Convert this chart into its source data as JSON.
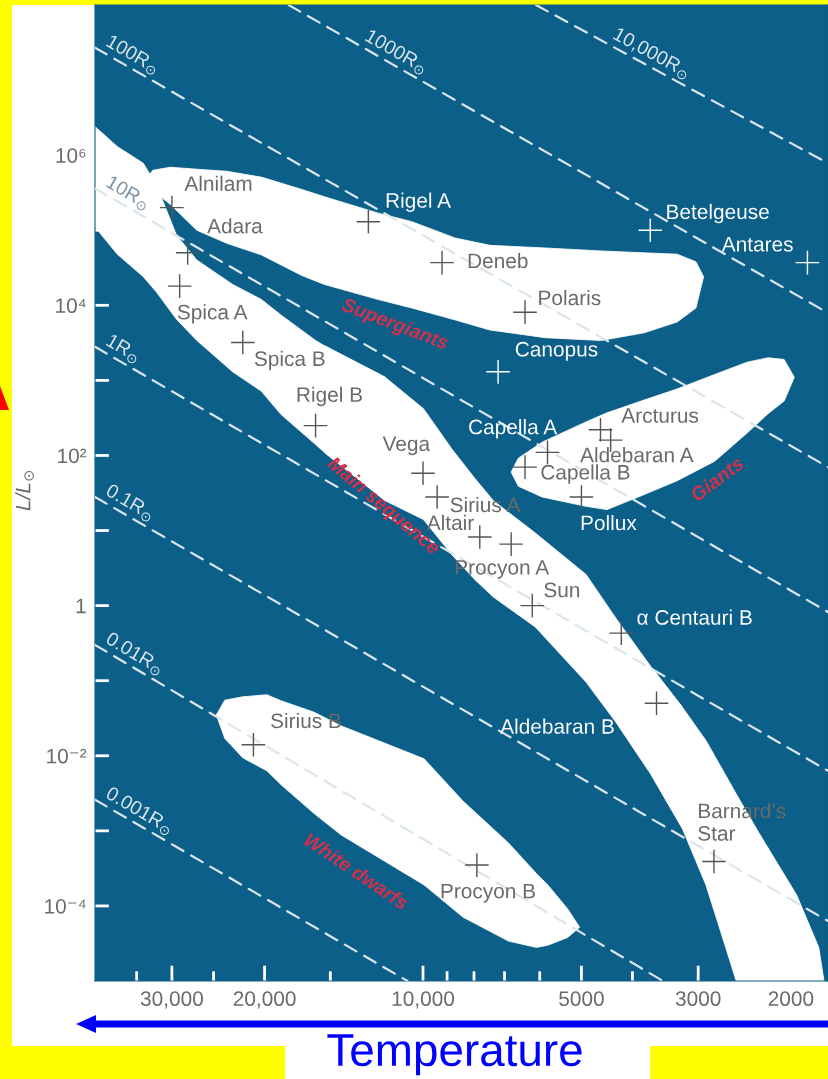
{
  "chart_data": {
    "type": "scatter",
    "xlabel": "Temperature",
    "ylabel": "L/L$_{⊙}$",
    "log": "xy",
    "xlim": [
      42000,
      1700
    ],
    "ylim": [
      1e-05,
      100000000
    ],
    "xticks": [
      {
        "value": 35000,
        "label": null
      },
      {
        "value": 30000,
        "label": "30,000"
      },
      {
        "value": 25000,
        "label": null
      },
      {
        "value": 20000,
        "label": "20,000"
      },
      {
        "value": 15000,
        "label": null
      },
      {
        "value": 10000,
        "label": "10,000"
      },
      {
        "value": 9000,
        "label": null
      },
      {
        "value": 8000,
        "label": null
      },
      {
        "value": 7000,
        "label": null
      },
      {
        "value": 6000,
        "label": null
      },
      5000,
      {
        "value": 4000,
        "label": null
      },
      3000,
      2000
    ],
    "yticks": [
      {
        "value": 0.0001,
        "label": "10⁻⁴"
      },
      {
        "value": 0.001,
        "label": null
      },
      {
        "value": 0.01,
        "label": "10⁻²"
      },
      {
        "value": 0.1,
        "label": null
      },
      1,
      {
        "value": 10,
        "label": null
      },
      {
        "value": 100,
        "label": "10²"
      },
      {
        "value": 1000,
        "label": null
      },
      {
        "value": 10000,
        "label": "10⁴"
      },
      {
        "value": 100000,
        "label": null
      },
      {
        "value": 1000000,
        "label": "10⁶"
      }
    ],
    "marker": "cross",
    "line_style": "dashed",
    "series": [
      {
        "color": "#555555",
        "x": [
          30000,
          28000,
          29000,
          22000,
          16000,
          10000,
          9400,
          7800,
          6800,
          6200,
          3600,
          2800,
          7900,
          21000,
          9200,
          6400,
          5800,
          6400,
          4600,
          4400,
          5000,
          4200,
          12700
        ],
        "values": [
          200000,
          50000,
          18000,
          3200,
          250,
          58,
          28,
          8.2,
          6.6,
          1,
          0.05,
          0.00039,
          0.00035,
          0.014,
          37000,
          8100,
          110,
          70,
          220,
          160,
          28,
          0.43,
          130000
        ]
      },
      {
        "color": "#ffffff",
        "x": [
          7200,
          3700,
          1860
        ],
        "values": [
          1300,
          100000,
          37000
        ]
      },
      {
        "type": "line",
        "marker": "none",
        "name": "10,000R$_{⊙}$",
        "color": "#dbe5ec",
        "x": [
          6100,
          1700
        ],
        "values": [
          100000000,
          780000
        ]
      },
      {
        "type": "line",
        "marker": "none",
        "name": "1000R$_{⊙}$",
        "color": "#dbe5ec",
        "x": [
          18000,
          1700
        ],
        "values": [
          100000000,
          7900
        ]
      },
      {
        "type": "line",
        "marker": "none",
        "name": "100R$_{⊙}$",
        "color": "#dbe5ec",
        "x": [
          42000,
          1700
        ],
        "values": [
          27000000,
          70
        ]
      },
      {
        "type": "line",
        "marker": "none",
        "name": "10R$_{⊙}$",
        "color": "#dbe5ec",
        "x": [
          42000,
          1700
        ],
        "values": [
          360000,
          0.82
        ]
      },
      {
        "type": "line",
        "marker": "none",
        "name": "1R$_{⊙}$",
        "color": "#dbe5ec",
        "x": [
          42000,
          1700
        ],
        "values": [
          2800,
          0.0063
        ]
      },
      {
        "type": "line",
        "marker": "none",
        "name": "0.1R$_{⊙}$",
        "color": "#dbe5ec",
        "x": [
          42000,
          1700
        ],
        "values": [
          28,
          6.3e-05
        ]
      },
      {
        "type": "line",
        "marker": "none",
        "name": "0.01R$_{⊙}$",
        "color": "#dbe5ec",
        "x": [
          42000,
          3500
        ],
        "values": [
          0.3,
          1e-05
        ]
      },
      {
        "type": "line",
        "marker": "none",
        "name": "0.001R$_{⊙}$",
        "color": "#dbe5ec",
        "x": [
          42000,
          10700
        ],
        "values": [
          0.0026,
          1e-05
        ]
      }
    ],
    "annotations": [
      {
        "text": "Alnilam",
        "x": 30000,
        "y": 200000
      },
      {
        "text": "Adara",
        "x": 28000,
        "y": 50000
      },
      {
        "text": "Spica A",
        "x": 29000,
        "y": 18000
      },
      {
        "text": "Spica B",
        "x": 22000,
        "y": 3200
      },
      {
        "text": "Rigel B",
        "x": 16000,
        "y": 250
      },
      {
        "text": "Vega",
        "x": 10000,
        "y": 58
      },
      {
        "text": "Sirius A",
        "x": 9400,
        "y": 28
      },
      {
        "text": "Altair",
        "x": 7800,
        "y": 8.2
      },
      {
        "text": "Procyon A",
        "x": 6800,
        "y": 6.6
      },
      {
        "text": "Sun",
        "x": 6200,
        "y": 1
      },
      {
        "text": "Aldebaran B",
        "x": 3600,
        "y": 0.05
      },
      {
        "text": "Barnard’s\nStar",
        "x": 2800,
        "y": 0.00039
      },
      {
        "text": "Procyon B",
        "x": 7900,
        "y": 0.00035
      },
      {
        "text": "Sirius B",
        "x": 21000,
        "y": 0.014
      },
      {
        "text": "Deneb",
        "x": 9200,
        "y": 37000
      },
      {
        "text": "Polaris",
        "x": 6400,
        "y": 8100
      },
      {
        "text": "Capella A",
        "x": 5800,
        "y": 110
      },
      {
        "text": "Capella B",
        "x": 6400,
        "y": 70
      },
      {
        "text": "Arcturus",
        "x": 4600,
        "y": 220
      },
      {
        "text": "Aldebaran A",
        "x": 4400,
        "y": 160
      },
      {
        "text": "Pollux",
        "x": 5000,
        "y": 28
      },
      {
        "text": "Rigel A",
        "x": 12700,
        "y": 130000
      },
      {
        "text": "α Centauri B",
        "x": 4200,
        "y": 0.43
      },
      {
        "text": "Canopus",
        "x": 7200,
        "y": 1300
      },
      {
        "text": "Betelgeuse",
        "x": 3700,
        "y": 100000
      },
      {
        "text": "Antares",
        "x": 1860,
        "y": 37000
      },
      "Supergiants",
      "Main sequence",
      "Giants",
      "White dwarfs"
    ]
  }
}
